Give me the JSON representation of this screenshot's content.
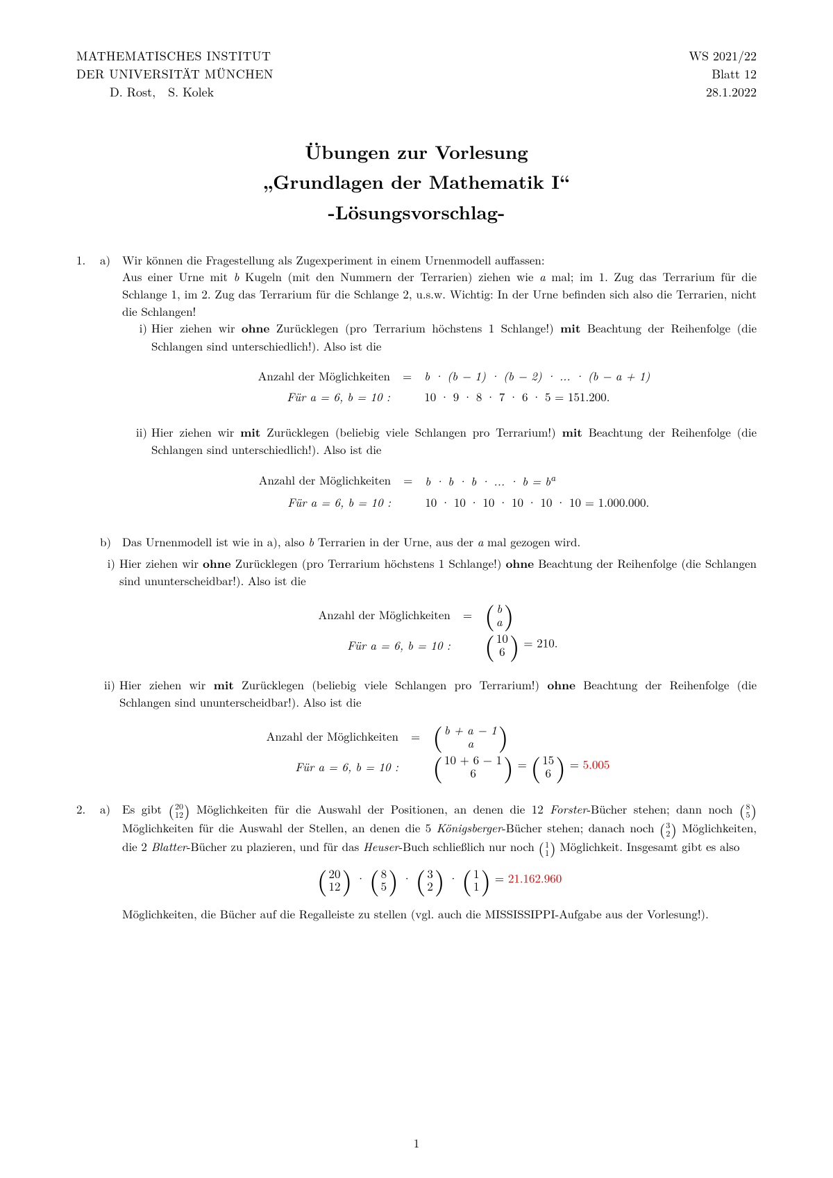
{
  "header": {
    "inst1": "MATHEMATISCHES INSTITUT",
    "inst2": "DER UNIVERSITÄT MÜNCHEN",
    "authors": "D. Rost, S. Kolek",
    "semester": "WS 2021/22",
    "sheet": "Blatt 12",
    "date": "28.1.2022"
  },
  "title": {
    "line1": "Übungen zur Vorlesung",
    "line2": "„Grundlagen der Mathematik I“",
    "line3": "-Lösungsvorschlag-"
  },
  "p1": {
    "num": "1.",
    "a": {
      "label": "a)",
      "intro1": "Wir können die Fragestellung als Zugexperiment in einem Urnenmodell auffassen:",
      "intro2_pre": "Aus einer Urne mit ",
      "intro2_b": "b",
      "intro2_mid": " Kugeln (mit den Nummern der Terrarien) ziehen wie ",
      "intro2_a": "a",
      "intro2_post": " mal; im 1. Zug das Terrarium für die Schlange 1, im 2. Zug das Terrarium für die Schlange 2, u.s.w. Wichtig: In der Urne befinden sich also die Terrarien, nicht die Schlangen!",
      "i": {
        "label": "i)",
        "text_pre": "Hier ziehen wir ",
        "bold1": "ohne",
        "mid1": " Zurücklegen (pro Terrarium höchstens 1 Schlange!) ",
        "bold2": "mit",
        "post": " Beachtung der Reihenfolge (die Schlangen sind unterschiedlich!). Also ist die",
        "math_l1_left": "Anzahl der Möglichkeiten",
        "math_l1_right": "b · (b − 1) · (b − 2) ·  ...  · (b − a + 1)",
        "math_l2_left": "Für a = 6, b = 10 :",
        "math_l2_right": "10 · 9 · 8 · 7 · 6 · 5  =  151.200."
      },
      "ii": {
        "label": "ii)",
        "text_pre": "Hier ziehen wir ",
        "bold1": "mit",
        "mid1": " Zurücklegen (beliebig viele Schlangen pro Terrarium!) ",
        "bold2": "mit",
        "post": " Beachtung der Reihenfolge (die Schlangen sind unterschiedlich!). Also ist die",
        "math_l1_left": "Anzahl der Möglichkeiten",
        "math_l1_right_a": "b · b · b ·  ...  · b  =  b",
        "math_l1_right_sup": "a",
        "math_l2_left": "Für a = 6, b = 10 :",
        "math_l2_right": "10 · 10 · 10 · 10 · 10 · 10  =  1.000.000."
      }
    },
    "b": {
      "label": "b)",
      "intro_pre": "Das Urnenmodell ist wie in a), also ",
      "intro_b": "b",
      "intro_mid": " Terrarien in der Urne, aus der ",
      "intro_a": "a",
      "intro_post": " mal gezogen wird.",
      "i": {
        "label": "i)",
        "text_pre": "Hier ziehen wir ",
        "bold1": "ohne",
        "mid1": " Zurücklegen (pro Terrarium höchstens 1 Schlange!) ",
        "bold2": "ohne",
        "post": " Beachtung der Reihenfolge (die Schlangen sind ununterscheidbar!). Also ist die",
        "math_l1_left": "Anzahl der Möglichkeiten",
        "binom1_top": "b",
        "binom1_bot": "a",
        "math_l2_left": "Für a = 6, b = 10 :",
        "binom2_top": "10",
        "binom2_bot": "6",
        "math_l2_right": "  =  210."
      },
      "ii": {
        "label": "ii)",
        "text_pre": "Hier ziehen wir ",
        "bold1": "mit",
        "mid1": " Zurücklegen (beliebig viele Schlangen pro Terrarium!) ",
        "bold2": "ohne",
        "post": " Beachtung der Reihenfolge (die Schlangen sind ununterscheidbar!). Also ist die",
        "math_l1_left": "Anzahl der Möglichkeiten",
        "binom1_top": "b + a − 1",
        "binom1_bot": "a",
        "math_l2_left": "Für a = 6, b = 10 :",
        "binom2_top": "10 + 6 − 1",
        "binom2_bot": "6",
        "binom3_top": "15",
        "binom3_bot": "6",
        "math_l2_right": "  =  ",
        "result_red": "5.005"
      }
    }
  },
  "p2": {
    "num": "2.",
    "a": {
      "label": "a)",
      "t1": "Es gibt ",
      "b1_top": "20",
      "b1_bot": "12",
      "t2": " Möglichkeiten für die Auswahl der Positionen, an denen die 12 ",
      "it1": "Forster",
      "t3": "-Bücher stehen; dann noch ",
      "b2_top": "8",
      "b2_bot": "5",
      "t4": " Möglichkeiten für die Auswahl der Stellen, an denen die 5 ",
      "it2": "Königsberger",
      "t5": "-Bücher stehen; danach noch ",
      "b3_top": "3",
      "b3_bot": "2",
      "t6": " Möglichkeiten, die 2 ",
      "it3": "Blatter",
      "t7": "-Bücher zu plazieren, und für das ",
      "it4": "Heuser",
      "t8": "-Buch schließlich nur noch ",
      "b4_top": "1",
      "b4_bot": "1",
      "t9": " Möglichkeit. Insgesamt gibt es also",
      "mb1_top": "20",
      "mb1_bot": "12",
      "mb2_top": "8",
      "mb2_bot": "5",
      "mb3_top": "3",
      "mb3_bot": "2",
      "mb4_top": "1",
      "mb4_bot": "1",
      "result_red": "21.162.960",
      "after": "Möglichkeiten, die Bücher auf die Regalleiste zu stellen (vgl. auch die MISSISSIPPI-Aufgabe aus der Vorlesung!)."
    }
  },
  "pagenum": "1",
  "colors": {
    "red": "#cc0000",
    "text": "#000000",
    "bg": "#ffffff"
  }
}
